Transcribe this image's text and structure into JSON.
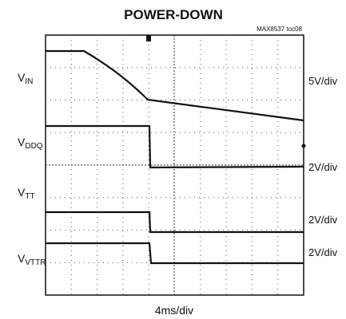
{
  "title": "POWER-DOWN",
  "reference": "MAX8537 toc08",
  "channels": [
    {
      "label": {
        "main": "V",
        "sub": "IN"
      },
      "scale": "5V/div"
    },
    {
      "label": {
        "main": "V",
        "sub": "DDQ"
      },
      "scale": "2V/div"
    },
    {
      "label": {
        "main": "V",
        "sub": "TT"
      },
      "scale": "2V/div"
    },
    {
      "label": {
        "main": "V",
        "sub": "VTTR"
      },
      "scale": "2V/div"
    }
  ],
  "time_scale": "4ms/div"
}
